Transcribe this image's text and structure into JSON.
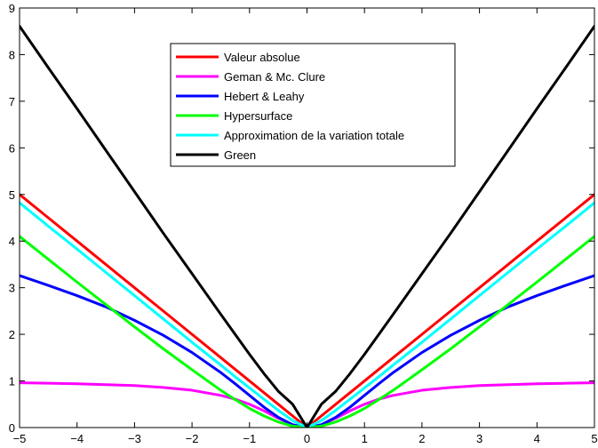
{
  "chart_data": {
    "type": "line",
    "title": "",
    "xlabel": "",
    "ylabel": "",
    "xlim": [
      -5,
      5
    ],
    "ylim": [
      0,
      9
    ],
    "x_ticks": [
      -5,
      -4,
      -3,
      -2,
      -1,
      0,
      1,
      2,
      3,
      4,
      5
    ],
    "y_ticks": [
      0,
      1,
      2,
      3,
      4,
      5,
      6,
      7,
      8,
      9
    ],
    "x_tick_labels": [
      "−5",
      "−4",
      "−3",
      "−2",
      "−1",
      "0",
      "1",
      "2",
      "3",
      "4",
      "5"
    ],
    "y_tick_labels": [
      "0",
      "1",
      "2",
      "3",
      "4",
      "5",
      "6",
      "7",
      "8",
      "9"
    ],
    "grid": false,
    "legend_position": "top-center",
    "x": [
      -5,
      -4.5,
      -4,
      -3.5,
      -3,
      -2.5,
      -2,
      -1.5,
      -1.25,
      -1,
      -0.75,
      -0.5,
      -0.25,
      0,
      0.25,
      0.5,
      0.75,
      1,
      1.25,
      1.5,
      2,
      2.5,
      3,
      3.5,
      4,
      4.5,
      5
    ],
    "series": [
      {
        "name": "Valeur absolue",
        "color": "#ff0000",
        "values": [
          5,
          4.5,
          4,
          3.5,
          3,
          2.5,
          2,
          1.5,
          1.25,
          1,
          0.75,
          0.5,
          0.25,
          0,
          0.25,
          0.5,
          0.75,
          1,
          1.25,
          1.5,
          2,
          2.5,
          3,
          3.5,
          4,
          4.5,
          5
        ]
      },
      {
        "name": "Geman & Mc. Clure",
        "color": "#ff00ff",
        "values": [
          0.96,
          0.95,
          0.94,
          0.92,
          0.9,
          0.86,
          0.8,
          0.69,
          0.61,
          0.5,
          0.36,
          0.2,
          0.06,
          0,
          0.06,
          0.2,
          0.36,
          0.5,
          0.61,
          0.69,
          0.8,
          0.86,
          0.9,
          0.92,
          0.94,
          0.95,
          0.96
        ]
      },
      {
        "name": "Hebert & Leahy",
        "color": "#0000ff",
        "values": [
          3.26,
          3.05,
          2.83,
          2.59,
          2.3,
          1.98,
          1.61,
          1.18,
          0.94,
          0.69,
          0.44,
          0.22,
          0.06,
          0,
          0.06,
          0.22,
          0.44,
          0.69,
          0.94,
          1.18,
          1.61,
          1.98,
          2.3,
          2.59,
          2.83,
          3.05,
          3.26
        ]
      },
      {
        "name": "Hypersurface",
        "color": "#00ff00",
        "values": [
          4.1,
          3.61,
          3.12,
          2.64,
          2.16,
          1.69,
          1.24,
          0.8,
          0.6,
          0.41,
          0.25,
          0.12,
          0.03,
          0,
          0.03,
          0.12,
          0.25,
          0.41,
          0.6,
          0.8,
          1.24,
          1.69,
          2.16,
          2.64,
          3.12,
          3.61,
          4.1
        ]
      },
      {
        "name": "Approximation de la variation totale",
        "color": "#00ffff",
        "values": [
          4.82,
          4.32,
          3.83,
          3.33,
          2.83,
          2.33,
          1.83,
          1.34,
          1.09,
          0.85,
          0.61,
          0.37,
          0.15,
          0,
          0.15,
          0.37,
          0.61,
          0.85,
          1.09,
          1.34,
          1.83,
          2.33,
          2.83,
          3.33,
          3.83,
          4.32,
          4.82
        ]
      },
      {
        "name": "Green",
        "color": "#000000",
        "values": [
          8.61,
          7.72,
          6.84,
          5.95,
          5.06,
          4.17,
          3.3,
          2.43,
          2.0,
          1.57,
          1.16,
          0.78,
          0.5,
          0,
          0.5,
          0.78,
          1.16,
          1.57,
          2.0,
          2.43,
          3.3,
          4.17,
          5.06,
          5.95,
          6.84,
          7.72,
          8.61
        ]
      }
    ]
  }
}
